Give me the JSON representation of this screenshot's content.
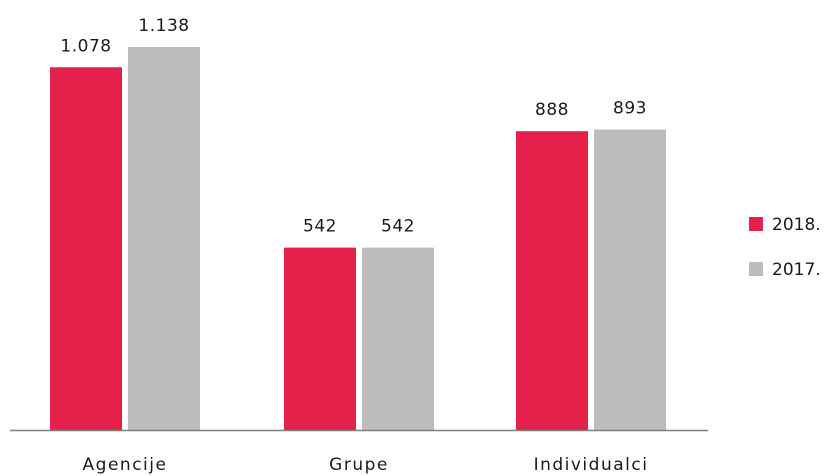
{
  "chart_data": {
    "type": "bar",
    "categories": [
      "Agencije",
      "Grupe",
      "Individualci"
    ],
    "series": [
      {
        "name": "2018.",
        "values": [
          1078,
          542,
          888
        ],
        "labels": [
          "1.078",
          "542",
          "888"
        ],
        "color": "#e5204a"
      },
      {
        "name": "2017.",
        "values": [
          1138,
          542,
          893
        ],
        "labels": [
          "1.138",
          "542",
          "893"
        ],
        "color": "#bdbdbd"
      }
    ],
    "ylim": [
      0,
      1200
    ],
    "grid": false,
    "legend_position": "right",
    "axis_color": "#7f7f7f"
  }
}
